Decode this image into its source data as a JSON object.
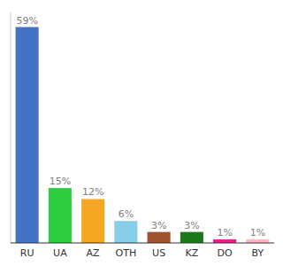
{
  "chart_data": {
    "type": "bar",
    "categories": [
      "RU",
      "UA",
      "AZ",
      "OTH",
      "US",
      "KZ",
      "DO",
      "BY"
    ],
    "values": [
      59,
      15,
      12,
      6,
      3,
      3,
      1,
      1
    ],
    "value_labels": [
      "59%",
      "15%",
      "12%",
      "6%",
      "3%",
      "3%",
      "1%",
      "1%"
    ],
    "colors": [
      "#4472c4",
      "#2ecc40",
      "#f5a623",
      "#87ceeb",
      "#a0522d",
      "#1a7a1a",
      "#e91e8c",
      "#ffb6c1"
    ],
    "ylim": [
      0,
      63
    ],
    "data_labels": true,
    "tick_labels": "x",
    "grid": false
  }
}
